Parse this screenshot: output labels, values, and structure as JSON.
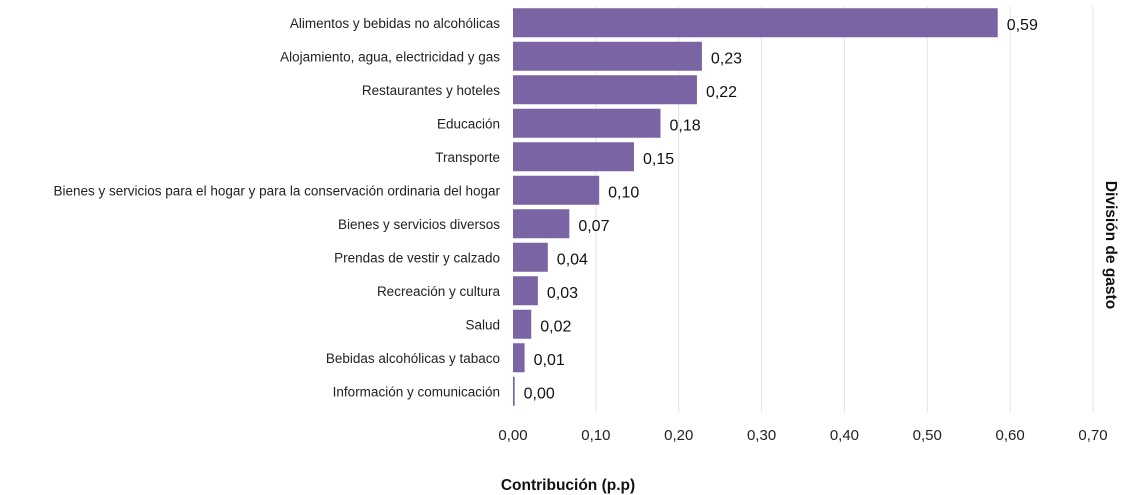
{
  "chart_data": {
    "type": "bar",
    "orientation": "horizontal",
    "categories": [
      "Alimentos y bebidas no alcohólicas",
      "Alojamiento, agua, electricidad y gas",
      "Restaurantes y hoteles",
      "Educación",
      "Transporte",
      "Bienes y servicios para el hogar y para la conservación ordinaria del hogar",
      "Bienes y servicios diversos",
      "Prendas de vestir y calzado",
      "Recreación y cultura",
      "Salud",
      "Bebidas alcohólicas y tabaco",
      "Información y comunicación"
    ],
    "values": [
      0.585,
      0.228,
      0.222,
      0.178,
      0.146,
      0.104,
      0.068,
      0.042,
      0.03,
      0.022,
      0.014,
      0.002
    ],
    "value_labels": [
      "0,59",
      "0,23",
      "0,22",
      "0,18",
      "0,15",
      "0,10",
      "0,07",
      "0,04",
      "0,03",
      "0,02",
      "0,01",
      "0,00"
    ],
    "xlabel": "Contribución (p.p)",
    "ylabel": "División de gasto",
    "xlim": [
      0,
      0.7
    ],
    "x_ticks": [
      0,
      0.1,
      0.2,
      0.3,
      0.4,
      0.5,
      0.6,
      0.7
    ],
    "x_tick_labels": [
      "0,00",
      "0,10",
      "0,20",
      "0,30",
      "0,40",
      "0,50",
      "0,60",
      "0,70"
    ],
    "grid": "vertical",
    "bar_color": "#7b64a3",
    "legend": "none"
  }
}
